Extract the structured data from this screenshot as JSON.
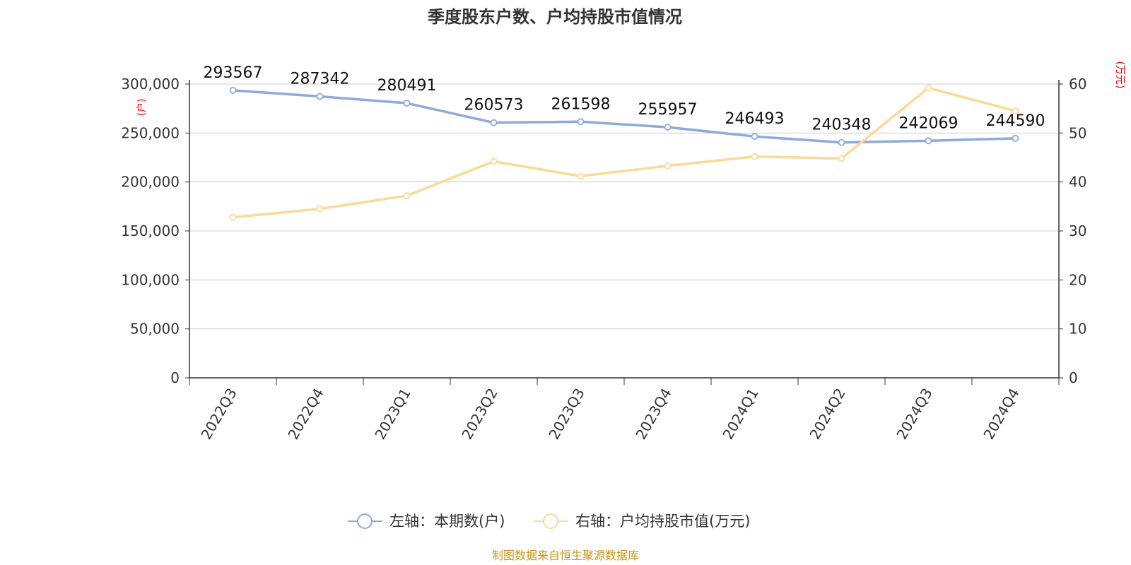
{
  "chart_data": {
    "type": "line",
    "title": "季度股东户数、户均持股市值情况",
    "categories": [
      "2022Q3",
      "2022Q4",
      "2023Q1",
      "2023Q2",
      "2023Q3",
      "2023Q4",
      "2024Q1",
      "2024Q2",
      "2024Q3",
      "2024Q4"
    ],
    "series": [
      {
        "name": "左轴：本期数(户)",
        "axis": "left",
        "color": "#8eaadb",
        "values": [
          293567,
          287342,
          280491,
          260573,
          261598,
          255957,
          246493,
          240348,
          242069,
          244590
        ],
        "data_labels": [
          "293567",
          "287342",
          "280491",
          "260573",
          "261598",
          "255957",
          "246493",
          "240348",
          "242069",
          "244590"
        ]
      },
      {
        "name": "右轴：户均持股市值(万元)",
        "axis": "right",
        "color": "#fcd996",
        "values": [
          32.8,
          34.5,
          37.2,
          44.2,
          41.2,
          43.3,
          45.2,
          44.8,
          59.2,
          54.5
        ]
      }
    ],
    "y_left": {
      "unit_label": "(户)",
      "ylim": [
        0,
        300000
      ],
      "ticks": [
        0,
        50000,
        100000,
        150000,
        200000,
        250000,
        300000
      ],
      "tick_labels": [
        "0",
        "50,000",
        "100,000",
        "150,000",
        "200,000",
        "250,000",
        "300,000"
      ]
    },
    "y_right": {
      "unit_label": "(万元)",
      "ylim": [
        0,
        60
      ],
      "ticks": [
        0,
        10,
        20,
        30,
        40,
        50,
        60
      ],
      "tick_labels": [
        "0",
        "10",
        "20",
        "30",
        "40",
        "50",
        "60"
      ]
    },
    "grid": true,
    "legend_position": "bottom-center",
    "source_note": "制图数据来自恒生聚源数据库"
  }
}
